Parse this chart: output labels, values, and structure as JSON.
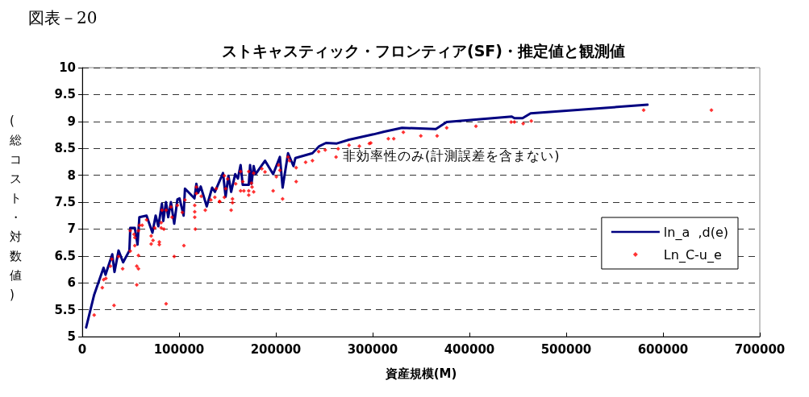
{
  "chart_data": {
    "type": "line",
    "title": "ストキャスティック・フロンティア(SF)・推定値と観測値",
    "xlabel": "資産規模(M)",
    "ylabel": "(総コスト・対数値)",
    "annotations": [
      "図表－20",
      "非効率性のみ(計測誤差を含まない)"
    ],
    "xlim": [
      0,
      700000
    ],
    "xticks": [
      0,
      100000,
      200000,
      300000,
      400000,
      500000,
      600000,
      700000
    ],
    "ylim": [
      5,
      10
    ],
    "yticks": [
      5,
      5.5,
      6,
      6.5,
      7,
      7.5,
      8,
      8.5,
      9,
      9.5,
      10
    ],
    "grid": "y",
    "legend": "right",
    "line_style": "solid",
    "series": [
      {
        "name": "ln_a  ,d(e)",
        "type": "line",
        "marker": "none",
        "color": "#000080",
        "x": [
          4000,
          12300,
          22000,
          24000,
          31000,
          33300,
          37500,
          42200,
          48700,
          49600,
          54300,
          57100,
          59000,
          66400,
          72500,
          75800,
          78600,
          82300,
          83700,
          86500,
          88800,
          91600,
          95000,
          98300,
          100500,
          104700,
          106100,
          115900,
          117900,
          119600,
          122400,
          128600,
          134200,
          137000,
          145400,
          148100,
          151000,
          153800,
          158000,
          160800,
          163600,
          165800,
          172000,
          173400,
          174800,
          177100,
          179000,
          188800,
          197200,
          204200,
          207000,
          212600,
          218200,
          220200,
          237800,
          244800,
          251800,
          263000,
          275600,
          300800,
          312000,
          330300,
          365300,
          376500,
          443700,
          446500,
          454900,
          463200,
          584000
        ],
        "values": [
          5.17,
          5.78,
          6.28,
          6.15,
          6.53,
          6.2,
          6.6,
          6.38,
          6.6,
          7.02,
          7.02,
          6.71,
          7.22,
          7.25,
          6.93,
          7.25,
          7.05,
          7.47,
          7.15,
          7.5,
          7.22,
          7.5,
          7.1,
          7.55,
          7.57,
          7.25,
          7.75,
          7.57,
          7.84,
          7.67,
          7.79,
          7.42,
          7.77,
          7.69,
          8.04,
          7.6,
          7.99,
          7.69,
          8.02,
          7.94,
          8.19,
          7.82,
          7.82,
          8.19,
          7.84,
          8.17,
          8.02,
          8.27,
          8.02,
          8.34,
          7.77,
          8.41,
          8.17,
          8.32,
          8.41,
          8.54,
          8.6,
          8.59,
          8.66,
          8.76,
          8.81,
          8.88,
          8.86,
          8.99,
          9.09,
          9.06,
          9.06,
          9.15,
          9.31
        ]
      },
      {
        "name": "Ln_C-u_e",
        "type": "scatter",
        "marker": "diamond",
        "color": "#ff0000",
        "x": [
          12300,
          32800,
          20700,
          22100,
          24400,
          29100,
          30500,
          37500,
          41700,
          49600,
          56300,
          56300,
          58000,
          58000,
          54300,
          54300,
          53500,
          49600,
          58000,
          59100,
          61900,
          66400,
          71200,
          73100,
          71200,
          79600,
          79600,
          74800,
          81500,
          81500,
          84300,
          86600,
          82400,
          86600,
          91600,
          92700,
          95000,
          98300,
          103400,
          105000,
          106100,
          116800,
          116200,
          116200,
          116200,
          117900,
          117900,
          122900,
          127100,
          132800,
          137000,
          138400,
          142000,
          146800,
          146800,
          141800,
          150200,
          153800,
          155200,
          155200,
          148200,
          158500,
          163600,
          163600,
          165800,
          167000,
          172000,
          172000,
          172000,
          174800,
          175400,
          177100,
          177100,
          185500,
          188800,
          197200,
          200500,
          202800,
          204200,
          207000,
          212600,
          214000,
          221000,
          221000,
          230800,
          237800,
          244200,
          251000,
          262200,
          264400,
          275600,
          286300,
          296600,
          298100,
          316200,
          321800,
          331700,
          349800,
          366600,
          376500,
          406700,
          443100,
          446500,
          455500,
          463900,
          580000,
          650000
        ],
        "values": [
          5.4,
          5.58,
          5.91,
          6.06,
          6.08,
          6.31,
          6.44,
          6.49,
          6.26,
          6.59,
          5.96,
          6.31,
          6.26,
          6.51,
          6.69,
          6.84,
          6.9,
          6.97,
          6.97,
          7.07,
          7.07,
          7.17,
          6.87,
          6.79,
          6.72,
          6.76,
          6.71,
          7.02,
          7.12,
          7.02,
          7.0,
          5.61,
          7.35,
          7.35,
          7.41,
          7.22,
          6.49,
          7.44,
          7.31,
          6.69,
          7.54,
          7.0,
          7.22,
          7.32,
          7.44,
          7.66,
          7.78,
          7.61,
          7.35,
          7.54,
          7.59,
          7.75,
          7.51,
          7.99,
          7.59,
          7.51,
          7.93,
          7.35,
          7.49,
          7.56,
          7.75,
          7.84,
          8.07,
          7.71,
          7.88,
          7.71,
          8.07,
          7.71,
          7.63,
          7.85,
          7.78,
          8.04,
          7.69,
          8.12,
          8.06,
          7.71,
          7.97,
          8.19,
          8.09,
          7.56,
          8.34,
          8.27,
          8.14,
          7.88,
          8.24,
          8.27,
          8.44,
          8.47,
          8.34,
          8.49,
          8.56,
          8.54,
          8.59,
          8.6,
          8.68,
          8.68,
          8.8,
          8.73,
          8.73,
          8.88,
          8.91,
          8.99,
          8.99,
          8.96,
          9.01,
          9.21,
          9.21
        ]
      }
    ]
  }
}
